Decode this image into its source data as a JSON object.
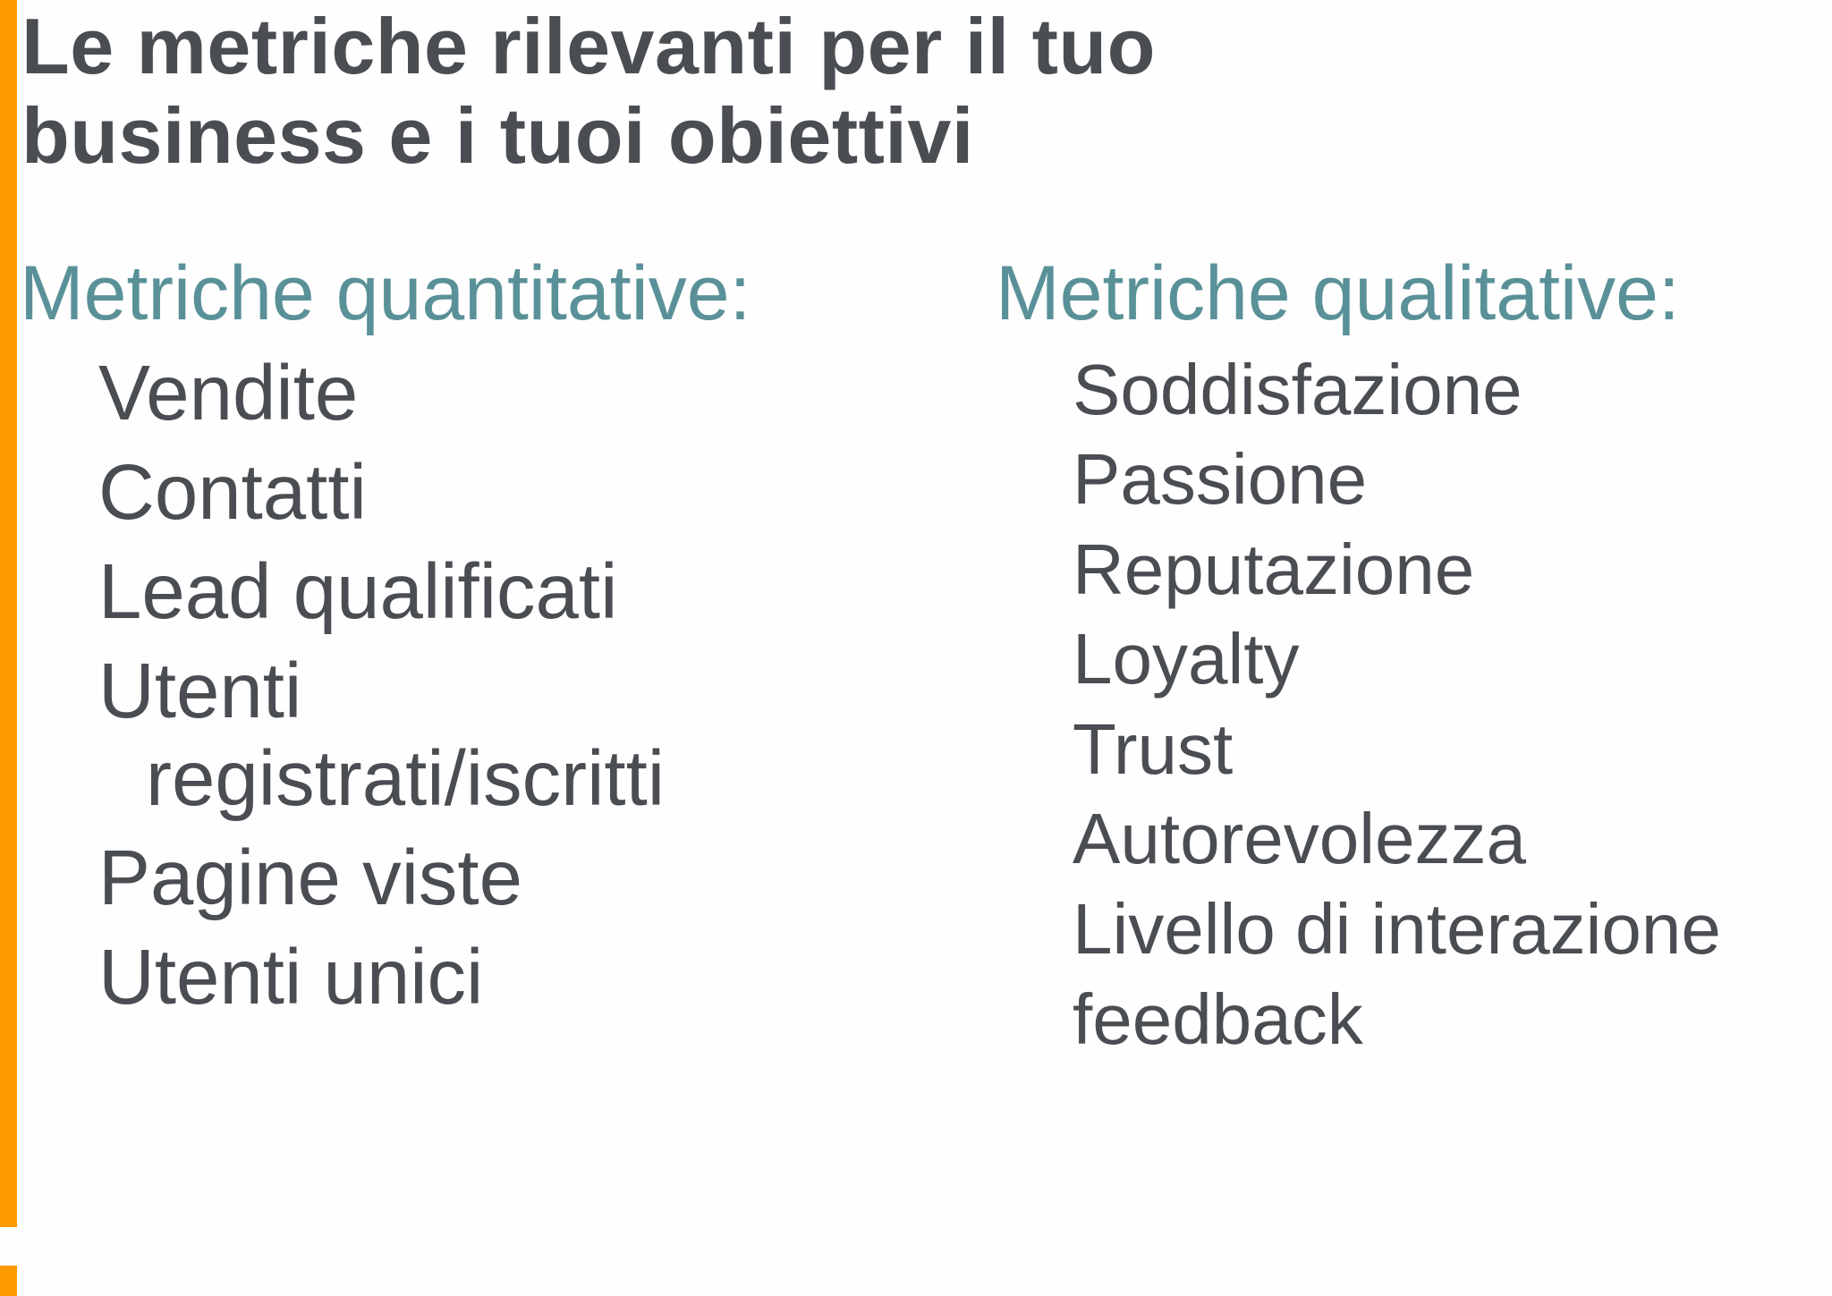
{
  "slide": {
    "title_line1": "Le metriche rilevanti per il tuo",
    "title_line2": "business e i tuoi obiettivi",
    "accent_color": "#ff9900",
    "heading_color": "#5a9198",
    "text_color": "#4a4d52"
  },
  "quantitative": {
    "heading": "Metriche quantitative:",
    "items": [
      "Vendite",
      "Contatti",
      "Lead qualificati",
      "Utenti",
      "registrati/iscritti",
      "Pagine viste",
      "Utenti unici"
    ]
  },
  "qualitative": {
    "heading": "Metriche qualitative:",
    "items": [
      "Soddisfazione",
      "Passione",
      "Reputazione",
      "Loyalty",
      "Trust",
      "Autorevolezza",
      "Livello di interazione",
      "feedback"
    ]
  }
}
